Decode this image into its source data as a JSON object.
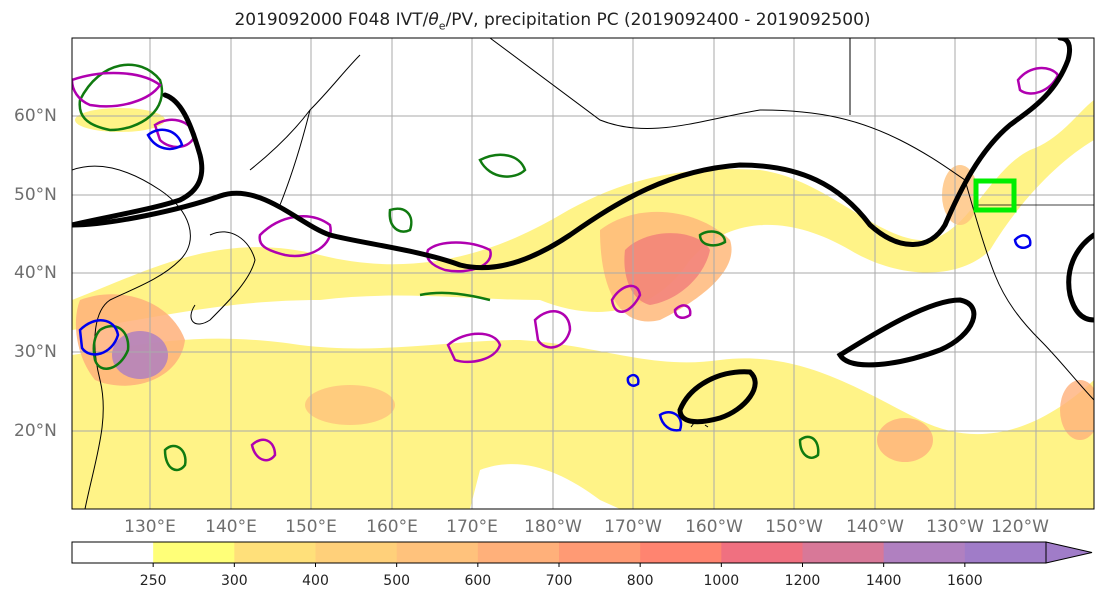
{
  "title": {
    "prefix": "2019092000 F048 IVT/",
    "theta": "θ",
    "theta_sub": "e",
    "suffix": "/PV, precipitation PC (2019092400 - 2019092500)"
  },
  "lat_labels": [
    "60°N",
    "50°N",
    "40°N",
    "30°N",
    "20°N"
  ],
  "lon_labels": [
    "130°E",
    "140°E",
    "150°E",
    "160°E",
    "170°E",
    "180°W",
    "170°W",
    "160°W",
    "150°W",
    "140°W",
    "130°W",
    "120°W"
  ],
  "colorbar": {
    "tick_labels": [
      "250",
      "300",
      "400",
      "500",
      "600",
      "700",
      "800",
      "1000",
      "1200",
      "1400",
      "1600"
    ],
    "colors": [
      "#ffffff",
      "#ffff78",
      "#ffe07a",
      "#ffd07a",
      "#ffc27c",
      "#ffb07a",
      "#ff9a74",
      "#ff8470",
      "#f07080",
      "#d87898",
      "#b080c0",
      "#a07cc8"
    ]
  },
  "map_legend_colors": {
    "ivt_axis": "#000000",
    "pv_positive": "#b000b0",
    "pv_negative": "#0000ee",
    "theta_e": "#107a10",
    "target_box": "#00ee00"
  }
}
